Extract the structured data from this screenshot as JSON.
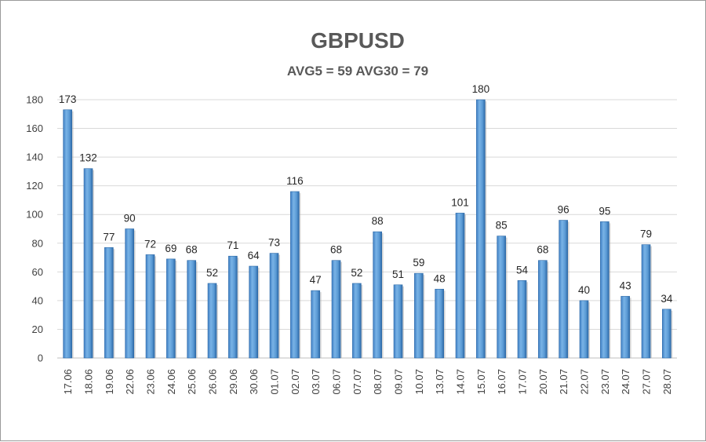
{
  "chart_data": {
    "type": "bar",
    "title": "GBPUSD",
    "subtitle": "AVG5 = 59 AVG30 = 79",
    "xlabel": "",
    "ylabel": "",
    "ylim": [
      0,
      180
    ],
    "yticks": [
      0,
      20,
      40,
      60,
      80,
      100,
      120,
      140,
      160,
      180
    ],
    "grid": true,
    "legend": "none",
    "bar_color": "#5b9bd5",
    "categories": [
      "17.06",
      "18.06",
      "19.06",
      "22.06",
      "23.06",
      "24.06",
      "25.06",
      "26.06",
      "29.06",
      "30.06",
      "01.07",
      "02.07",
      "03.07",
      "06.07",
      "07.07",
      "08.07",
      "09.07",
      "10.07",
      "13.07",
      "14.07",
      "15.07",
      "16.07",
      "17.07",
      "20.07",
      "21.07",
      "22.07",
      "23.07",
      "24.07",
      "27.07",
      "28.07"
    ],
    "values": [
      173,
      132,
      77,
      90,
      72,
      69,
      68,
      52,
      71,
      64,
      73,
      116,
      47,
      68,
      52,
      88,
      51,
      59,
      48,
      101,
      180,
      85,
      54,
      68,
      96,
      40,
      95,
      43,
      79,
      34
    ]
  }
}
